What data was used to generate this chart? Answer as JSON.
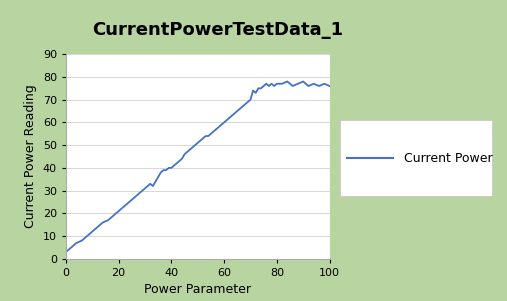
{
  "title": "CurrentPowerTestData_1",
  "xlabel": "Power Parameter",
  "ylabel": "Current Power Reading",
  "legend_label": "Current Power",
  "line_color": "#4472C4",
  "fig_bg_color": "#FFFFFF",
  "plot_bg_color": "#FFFFFF",
  "outer_border_color": "#B8D4A0",
  "xlim": [
    0,
    100
  ],
  "ylim": [
    0,
    90
  ],
  "xticks": [
    0,
    20,
    40,
    60,
    80,
    100
  ],
  "yticks": [
    0,
    10,
    20,
    30,
    40,
    50,
    60,
    70,
    80,
    90
  ],
  "x": [
    0,
    2,
    4,
    6,
    8,
    10,
    12,
    14,
    16,
    18,
    20,
    22,
    24,
    26,
    28,
    29,
    30,
    31,
    32,
    33,
    34,
    35,
    36,
    37,
    38,
    39,
    40,
    41,
    42,
    43,
    44,
    45,
    46,
    47,
    48,
    49,
    50,
    51,
    52,
    53,
    54,
    55,
    56,
    57,
    58,
    59,
    60,
    61,
    62,
    63,
    64,
    65,
    66,
    67,
    68,
    69,
    70,
    71,
    72,
    73,
    74,
    75,
    76,
    77,
    78,
    79,
    80,
    82,
    84,
    86,
    88,
    90,
    92,
    94,
    96,
    98,
    100
  ],
  "y": [
    3,
    5,
    7,
    8,
    10,
    12,
    14,
    16,
    17,
    19,
    21,
    23,
    25,
    27,
    29,
    30,
    31,
    32,
    33,
    32,
    34,
    36,
    38,
    39,
    39,
    40,
    40,
    41,
    42,
    43,
    44,
    46,
    47,
    48,
    49,
    50,
    51,
    52,
    53,
    54,
    54,
    55,
    56,
    57,
    58,
    59,
    60,
    61,
    62,
    63,
    64,
    65,
    66,
    67,
    68,
    69,
    70,
    74,
    73,
    75,
    75,
    76,
    77,
    76,
    77,
    76,
    77,
    77,
    78,
    76,
    77,
    78,
    76,
    77,
    76,
    77,
    76
  ],
  "title_fontsize": 13,
  "axis_label_fontsize": 9,
  "tick_fontsize": 8,
  "legend_fontsize": 9,
  "grid_color": "#D0D0D0",
  "spine_color": "#AAAAAA"
}
